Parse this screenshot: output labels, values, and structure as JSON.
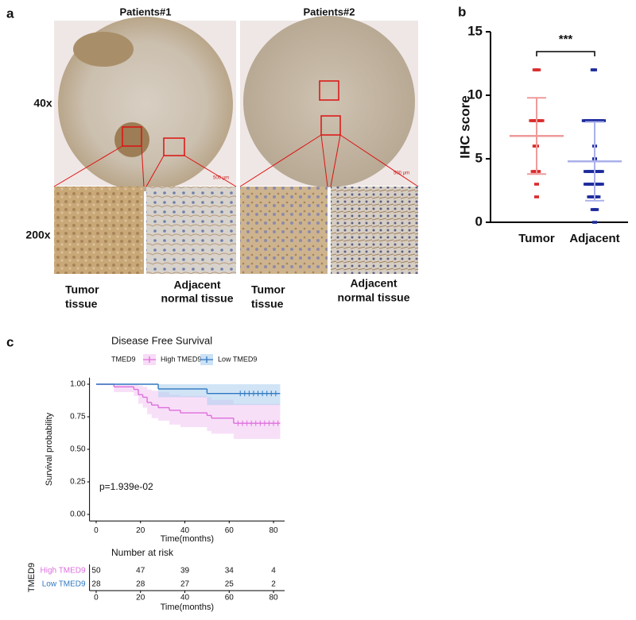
{
  "panel_a": {
    "label": "a",
    "row_labels": [
      "40x",
      "200x"
    ],
    "columns": [
      {
        "title": "Patients#1",
        "scale_bar": "500 μm",
        "captions": [
          [
            "Tumor",
            "tissue"
          ],
          [
            "Adjacent",
            "normal tissue"
          ]
        ]
      },
      {
        "title": "Patients#2",
        "scale_bar": "500 μm",
        "captions": [
          [
            "Tumor",
            "tissue"
          ],
          [
            "Adjacent",
            "normal tissue"
          ]
        ]
      }
    ]
  },
  "chart_data": [
    {
      "type": "dot",
      "label": "b",
      "ylabel": "IHC score",
      "annotation": "***",
      "categories": [
        "Tumor",
        "Adjacent"
      ],
      "ylim": [
        0,
        15
      ],
      "yticks": [
        0,
        5,
        10,
        15
      ],
      "groups": [
        {
          "color": "#d92c2c",
          "mean_color": "#ee9a9a",
          "points": [
            12,
            12,
            12,
            8,
            8,
            8,
            8,
            8,
            8,
            8,
            6,
            6,
            4,
            4,
            4,
            4,
            3,
            2
          ],
          "mean": 6.8,
          "sd": 3.0
        },
        {
          "color": "#1c2a9c",
          "mean_color": "#aab0ea",
          "points": [
            12,
            12,
            8,
            8,
            8,
            8,
            8,
            8,
            8,
            8,
            8,
            8,
            8,
            8,
            6,
            5,
            4,
            4,
            4,
            4,
            4,
            4,
            4,
            4,
            4,
            4,
            3,
            3,
            3,
            3,
            3,
            3,
            3,
            3,
            3,
            3,
            2,
            2,
            2,
            2,
            2,
            2,
            1,
            1,
            1,
            0
          ],
          "mean": 4.8,
          "sd": 3.1
        }
      ]
    },
    {
      "type": "step",
      "label": "c",
      "title": "Disease Free Survival",
      "legend_title": "TMED9",
      "xlabel": "Time(months)",
      "ylabel": "Survival probability",
      "annotation": "p=1.939e-02",
      "xlim": [
        -3,
        85
      ],
      "ylim": [
        -0.05,
        1.05
      ],
      "xticks": [
        0,
        20,
        40,
        60,
        80
      ],
      "yticks": [
        {
          "value": 0,
          "label": "0.00"
        },
        {
          "value": 0.25,
          "label": "0.25"
        },
        {
          "value": 0.5,
          "label": "0.50"
        },
        {
          "value": 0.75,
          "label": "0.75"
        },
        {
          "value": 1,
          "label": "1.00"
        }
      ],
      "series": [
        {
          "name": "High TMED9",
          "color": "#dd6fdc",
          "band_color": "#f3c4f2",
          "x": [
            0,
            8,
            17,
            19,
            21,
            23,
            25,
            28,
            33,
            38,
            50,
            52,
            62,
            83
          ],
          "values": [
            1,
            0.98,
            0.96,
            0.92,
            0.9,
            0.86,
            0.84,
            0.82,
            0.8,
            0.78,
            0.76,
            0.74,
            0.7,
            0.7
          ],
          "lower": [
            1,
            0.94,
            0.91,
            0.85,
            0.82,
            0.77,
            0.74,
            0.72,
            0.69,
            0.67,
            0.64,
            0.62,
            0.58,
            0.58
          ],
          "upper": [
            1,
            1,
            1,
            0.99,
            0.98,
            0.96,
            0.95,
            0.94,
            0.92,
            0.91,
            0.9,
            0.88,
            0.85,
            0.85
          ],
          "censored": [
            64,
            66,
            68,
            70,
            72,
            74,
            76,
            78,
            80,
            82
          ]
        },
        {
          "name": "Low TMED9",
          "color": "#2f78c0",
          "band_color": "#a9cdef",
          "x": [
            0,
            28,
            50,
            83
          ],
          "values": [
            1,
            0.964,
            0.929,
            0.929
          ],
          "lower": [
            1,
            0.9,
            0.84,
            0.84
          ],
          "upper": [
            1,
            1,
            1,
            1
          ],
          "censored": [
            65,
            67,
            69,
            71,
            73,
            75,
            77,
            79,
            81
          ]
        }
      ],
      "risk_table": {
        "title": "Number at risk",
        "ylabel": "TMED9",
        "counts": [
          [
            50,
            47,
            39,
            34,
            4
          ],
          [
            28,
            28,
            27,
            25,
            2
          ]
        ]
      }
    }
  ]
}
